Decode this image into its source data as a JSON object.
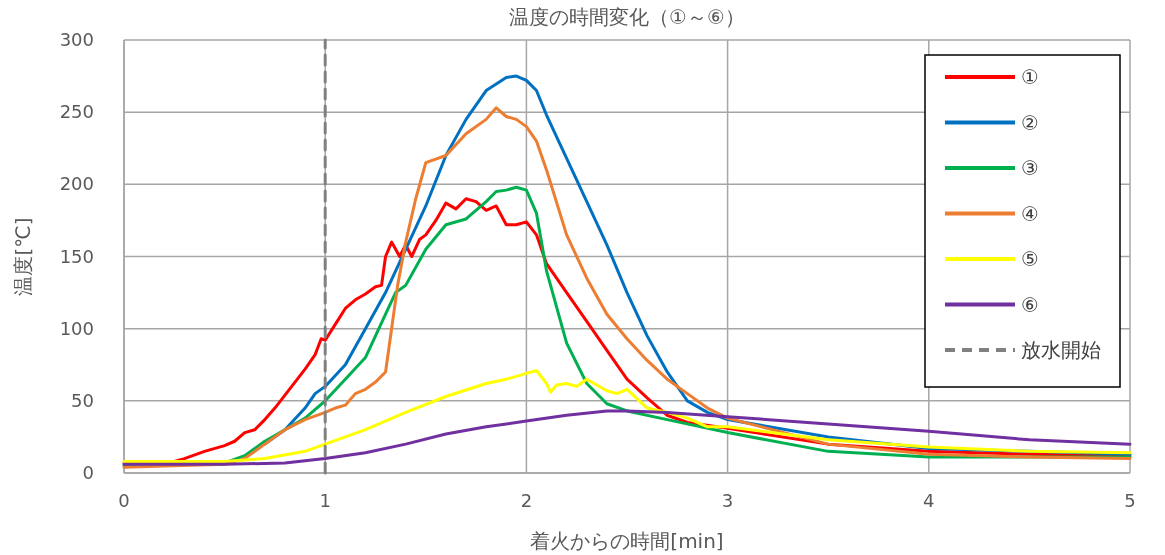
{
  "chart_data": {
    "type": "line",
    "title": "温度の時間変化（①～⑥）",
    "xlabel": "着火からの時間[min]",
    "ylabel": "温度[℃]",
    "xlim": [
      0,
      5
    ],
    "xticks": [
      0,
      1,
      2,
      3,
      4,
      5
    ],
    "ylim": [
      0,
      300
    ],
    "yticks": [
      0,
      50,
      100,
      150,
      200,
      250,
      300
    ],
    "grid": true,
    "legend": "top right",
    "line_style": "solid",
    "marker": "none",
    "series": [
      {
        "name": "①",
        "color": "#ff0000",
        "x": [
          0,
          0.25,
          0.3,
          0.4,
          0.5,
          0.55,
          0.6,
          0.65,
          0.7,
          0.75,
          0.8,
          0.85,
          0.9,
          0.95,
          0.98,
          1.0,
          1.05,
          1.1,
          1.15,
          1.2,
          1.25,
          1.28,
          1.3,
          1.33,
          1.37,
          1.4,
          1.43,
          1.47,
          1.5,
          1.55,
          1.6,
          1.65,
          1.7,
          1.75,
          1.8,
          1.85,
          1.9,
          1.95,
          2.0,
          2.05,
          2.1,
          2.2,
          2.3,
          2.4,
          2.5,
          2.6,
          2.7,
          2.8,
          3.0,
          3.5,
          4.0,
          4.5,
          5.0
        ],
        "values": [
          7,
          8,
          10,
          15,
          19,
          22,
          28,
          30,
          37,
          45,
          54,
          63,
          72,
          82,
          93,
          92,
          103,
          114,
          120,
          124,
          129,
          130,
          150,
          160,
          150,
          158,
          150,
          162,
          165,
          175,
          187,
          183,
          190,
          188,
          182,
          185,
          172,
          172,
          174,
          165,
          145,
          125,
          105,
          85,
          65,
          52,
          40,
          35,
          31,
          20,
          15,
          13,
          12
        ]
      },
      {
        "name": "②",
        "color": "#0070c0",
        "x": [
          0.7,
          0.8,
          0.9,
          0.95,
          1.0,
          1.1,
          1.2,
          1.3,
          1.4,
          1.5,
          1.6,
          1.7,
          1.8,
          1.9,
          1.95,
          2.0,
          2.05,
          2.1,
          2.2,
          2.3,
          2.4,
          2.5,
          2.6,
          2.7,
          2.8,
          2.9,
          3.0,
          3.5,
          4.0,
          4.5,
          5.0
        ],
        "values": [
          20,
          30,
          45,
          55,
          60,
          75,
          100,
          125,
          155,
          185,
          220,
          245,
          265,
          274,
          275,
          272,
          265,
          248,
          218,
          188,
          158,
          125,
          95,
          70,
          50,
          42,
          37,
          25,
          17,
          15,
          13
        ]
      },
      {
        "name": "③",
        "color": "#00b050",
        "x": [
          0,
          0.5,
          0.6,
          0.7,
          0.8,
          0.9,
          1.0,
          1.1,
          1.2,
          1.3,
          1.35,
          1.4,
          1.5,
          1.6,
          1.7,
          1.8,
          1.85,
          1.9,
          1.95,
          2.0,
          2.05,
          2.1,
          2.2,
          2.3,
          2.4,
          2.5,
          2.7,
          3.0,
          3.5,
          4.0,
          5.0
        ],
        "values": [
          5,
          7,
          12,
          22,
          30,
          38,
          50,
          65,
          80,
          110,
          125,
          130,
          155,
          172,
          176,
          188,
          195,
          196,
          198,
          196,
          180,
          140,
          90,
          62,
          48,
          43,
          37,
          28,
          15,
          11,
          11
        ]
      },
      {
        "name": "④",
        "color": "#ed7d31",
        "x": [
          0,
          0.5,
          0.6,
          0.7,
          0.8,
          0.9,
          1.0,
          1.05,
          1.1,
          1.15,
          1.2,
          1.25,
          1.3,
          1.33,
          1.36,
          1.4,
          1.45,
          1.5,
          1.6,
          1.7,
          1.8,
          1.85,
          1.9,
          1.95,
          2.0,
          2.05,
          2.1,
          2.2,
          2.3,
          2.4,
          2.5,
          2.6,
          2.7,
          2.8,
          2.9,
          3.0,
          3.5,
          4.0,
          4.5,
          5.0
        ],
        "values": [
          4,
          6,
          10,
          20,
          30,
          37,
          42,
          45,
          47,
          55,
          58,
          63,
          70,
          100,
          130,
          160,
          190,
          215,
          220,
          235,
          245,
          253,
          247,
          245,
          240,
          230,
          210,
          165,
          135,
          110,
          93,
          78,
          65,
          55,
          45,
          38,
          20,
          13,
          11,
          10
        ]
      },
      {
        "name": "⑤",
        "color": "#ffff00",
        "x": [
          0,
          0.5,
          0.7,
          0.9,
          1.0,
          1.2,
          1.4,
          1.6,
          1.8,
          1.9,
          2.0,
          2.05,
          2.1,
          2.12,
          2.15,
          2.2,
          2.25,
          2.3,
          2.4,
          2.45,
          2.5,
          2.6,
          2.7,
          2.8,
          2.9,
          3.0,
          3.5,
          4.0,
          4.5,
          5.0
        ],
        "values": [
          8,
          8,
          10,
          15,
          20,
          30,
          42,
          53,
          62,
          65,
          69,
          71,
          62,
          56,
          61,
          62,
          60,
          65,
          57,
          55,
          58,
          45,
          42,
          38,
          32,
          32,
          23,
          18,
          15,
          14
        ]
      },
      {
        "name": "⑥",
        "color": "#7030a0",
        "x": [
          0,
          0.5,
          0.8,
          1.0,
          1.2,
          1.4,
          1.6,
          1.8,
          2.0,
          2.2,
          2.4,
          2.5,
          2.7,
          3.0,
          3.5,
          4.0,
          4.5,
          5.0
        ],
        "values": [
          6,
          6,
          7,
          10,
          14,
          20,
          27,
          32,
          36,
          40,
          43,
          43,
          42,
          39,
          34,
          29,
          23,
          20
        ]
      },
      {
        "name": "放水開始",
        "color": "#808080",
        "line_style": "dashed",
        "x": [
          1,
          1
        ],
        "values": [
          0,
          300
        ]
      }
    ]
  }
}
